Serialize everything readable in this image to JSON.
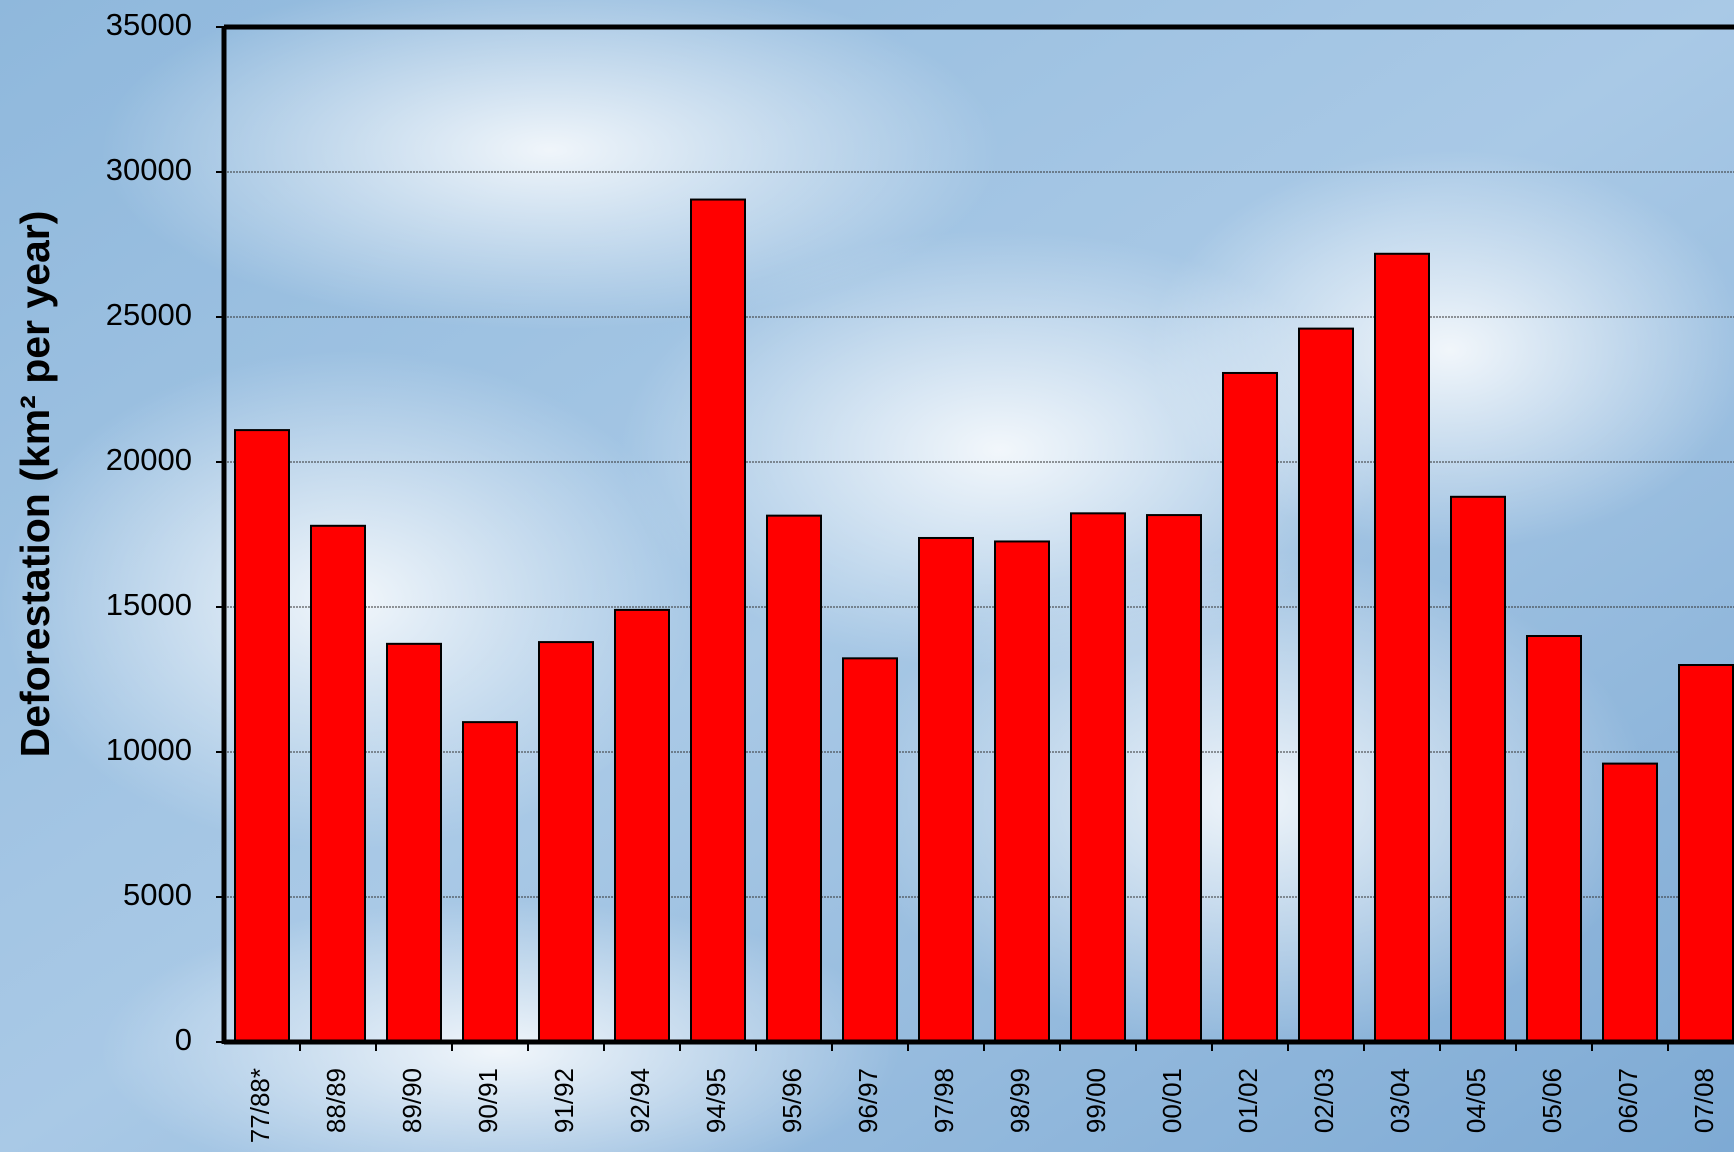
{
  "chart_data": {
    "type": "bar",
    "y_label": "Deforestation (km² per year)",
    "categories": [
      "77/88*",
      "88/89",
      "89/90",
      "90/91",
      "91/92",
      "92/94",
      "94/95",
      "95/96",
      "96/97",
      "97/98",
      "98/99",
      "99/00",
      "00/01",
      "01/02",
      "02/03",
      "03/04",
      "04/05",
      "05/06",
      "06/07",
      "07/08"
    ],
    "values": [
      21100,
      17800,
      13730,
      11030,
      13790,
      14900,
      29050,
      18150,
      13230,
      17380,
      17260,
      18230,
      18170,
      23070,
      24600,
      27180,
      18800,
      14000,
      9600,
      13000
    ],
    "color": "#ff0000",
    "ylim": [
      0,
      35000
    ],
    "yticks": [
      0,
      5000,
      10000,
      15000,
      20000,
      25000,
      30000,
      35000
    ],
    "grid": true
  }
}
